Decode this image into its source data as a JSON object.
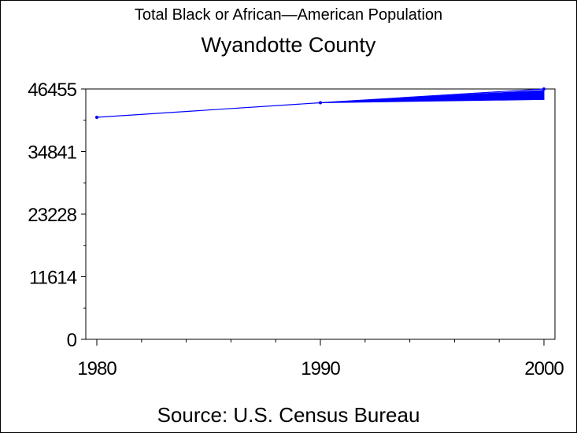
{
  "chart_data": {
    "type": "line",
    "title": "Total Black or African—American Population",
    "subtitle": "Wyandotte County",
    "source": "Source: U.S. Census Bureau",
    "x": [
      1980,
      1990,
      2000
    ],
    "series": [
      {
        "values": [
          41200,
          43900,
          46455
        ],
        "color": "#0000ff"
      }
    ],
    "end_band": {
      "x_range": [
        1990,
        2000
      ],
      "low": 44500,
      "high": 46200
    },
    "yticks": [
      "0",
      "11614",
      "23228",
      "34841",
      "46455"
    ],
    "ytick_values": [
      0,
      11614,
      23228,
      34841,
      46455
    ],
    "xticks": [
      "1980",
      "1990",
      "2000"
    ],
    "xtick_values": [
      1980,
      1990,
      2000
    ],
    "ylim": [
      0,
      46455
    ],
    "xlim": [
      1980,
      2000
    ],
    "grid": false
  }
}
